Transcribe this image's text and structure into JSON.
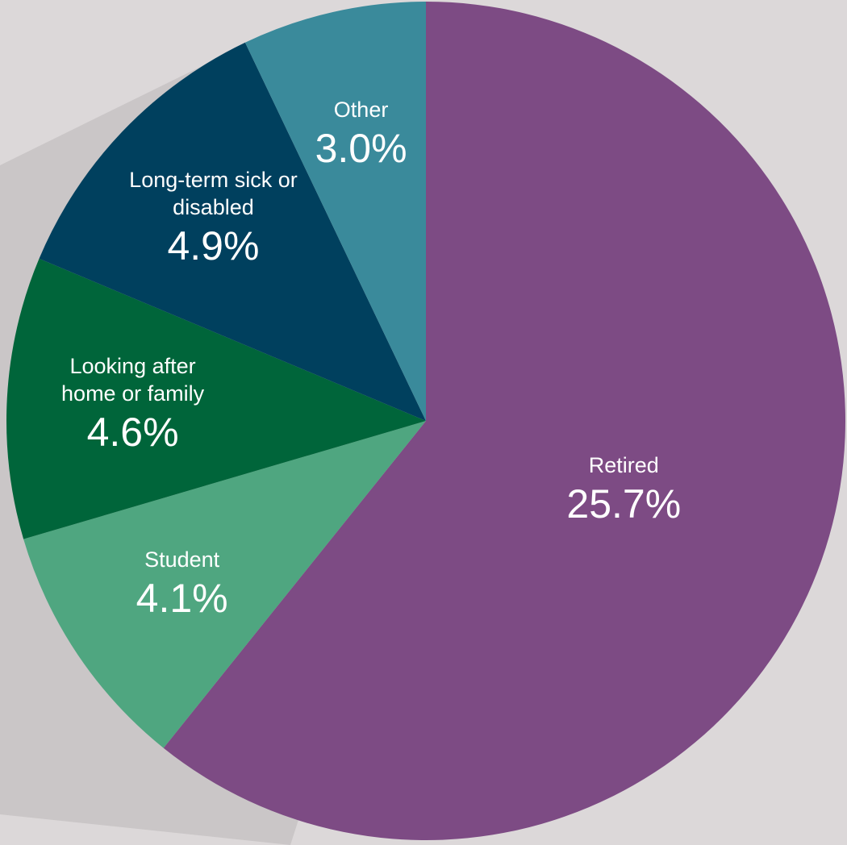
{
  "chart_data": {
    "type": "pie",
    "categories": [
      "Retired",
      "Student",
      "Looking after home or family",
      "Long-term sick or disabled",
      "Other"
    ],
    "values": [
      25.7,
      4.1,
      4.6,
      4.9,
      3.0
    ],
    "value_labels": [
      "25.7%",
      "4.1%",
      "4.6%",
      "4.9%",
      "3.0%"
    ],
    "colors": [
      "#7d4b84",
      "#4fa680",
      "#00653a",
      "#00405e",
      "#3a8a9b"
    ]
  }
}
